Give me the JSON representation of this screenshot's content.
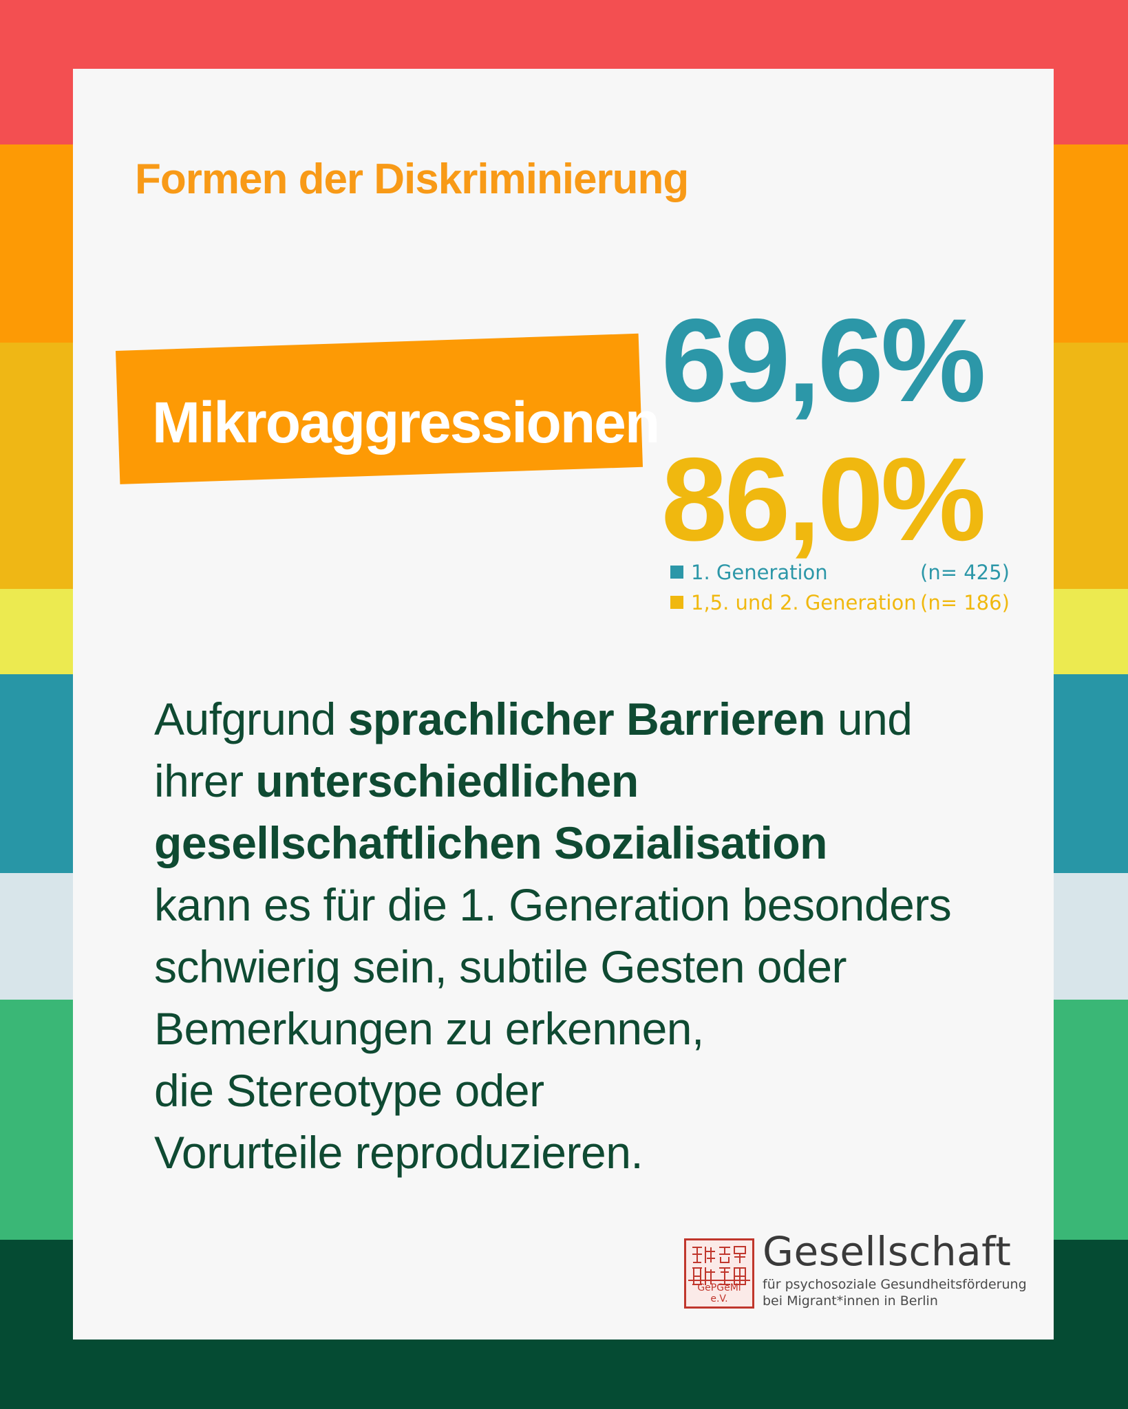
{
  "colors": {
    "stripes": [
      "#f34f51",
      "#fd9a05",
      "#efb715",
      "#ecea50",
      "#2896a6",
      "#d8e5ea",
      "#3ab776",
      "#054b33"
    ],
    "card_background": "#f7f7f7",
    "heading": "#f89a17",
    "banner": "#fd9a05",
    "first_generation": "#2c97a8",
    "second_generation": "#f0b80f",
    "body_text": "#0f4a32",
    "logo_red": "#c0362c"
  },
  "heading": "Formen der Diskriminierung",
  "banner_label": "Mikroaggressionen",
  "stats": [
    {
      "value": "69,6%",
      "group": "1.  Generation",
      "n": "(n= 425)"
    },
    {
      "value": "86,0%",
      "group": "1,5. und 2.  Generation",
      "n": "(n= 186)"
    }
  ],
  "body": {
    "l1_a": "Aufgrund ",
    "l1_b": "sprachlicher Barrieren",
    "l1_c": " und",
    "l2_a": "ihrer ",
    "l2_b": "unterschiedlichen",
    "l3": "gesellschaftlichen Sozialisation",
    "l4": "kann es für die 1. Generation besonders",
    "l5": "schwierig sein, subtile Gesten oder",
    "l6": "Bemerkungen zu erkennen,",
    "l7": "die Stereotype oder",
    "l8": "Vorurteile reproduzieren."
  },
  "logo": {
    "seal_text": "GePGeMi e.V.",
    "title": "Gesellschaft",
    "subtitle_1": "für psychosoziale Gesundheitsförderung",
    "subtitle_2": "bei Migrant*innen in Berlin"
  }
}
